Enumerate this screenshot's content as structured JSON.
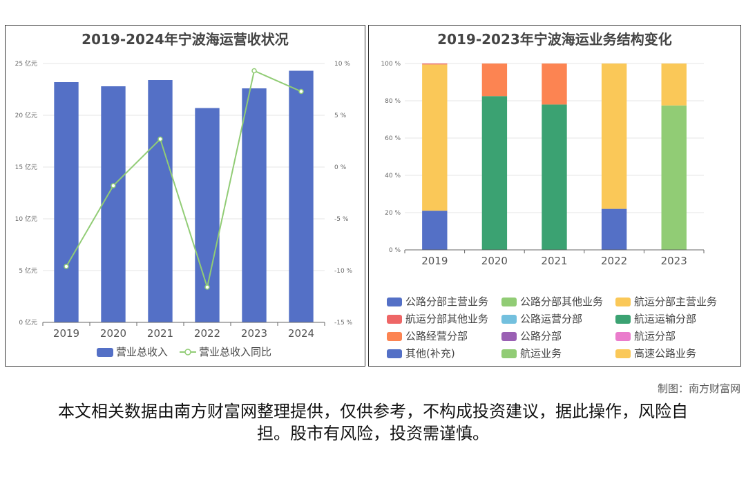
{
  "credit": "制图：南方财富网",
  "disclaimer": "本文相关数据由南方财富网整理提供，仅供参考，不构成投资建议，据此操作，风险自担。股市有风险，投资需谨慎。",
  "chart_data": [
    {
      "type": "bar",
      "title": "2019-2024年宁波海运营收状况",
      "categories": [
        "2019",
        "2020",
        "2021",
        "2022",
        "2023",
        "2024"
      ],
      "y_ticks": [
        "0 亿元",
        "5 亿元",
        "10 亿元",
        "15 亿元",
        "20 亿元",
        "25 亿元"
      ],
      "y2_ticks": [
        "-15 %",
        "-10 %",
        "-5 %",
        "0 %",
        "5 %",
        "10 %"
      ],
      "ylim": [
        0,
        25
      ],
      "y2lim": [
        -15,
        10
      ],
      "legend_position": "bottom",
      "series": [
        {
          "name": "营业总收入",
          "type": "bar",
          "axis": "left",
          "color": "#5470c6",
          "values": [
            23.2,
            22.8,
            23.4,
            20.7,
            22.6,
            24.3
          ]
        },
        {
          "name": "营业总收入同比",
          "type": "line",
          "axis": "right",
          "color": "#91cc75",
          "values": [
            -9.6,
            -1.8,
            2.7,
            -11.6,
            9.3,
            7.3
          ]
        }
      ]
    },
    {
      "type": "bar",
      "stacked": true,
      "title": "2019-2023年宁波海运业务结构变化",
      "categories": [
        "2019",
        "2020",
        "2021",
        "2022",
        "2023"
      ],
      "y_ticks": [
        "0 %",
        "20 %",
        "40 %",
        "60 %",
        "80 %",
        "100 %"
      ],
      "ylim": [
        0,
        100
      ],
      "legend_position": "bottom",
      "series": [
        {
          "name": "公路分部主营业务",
          "color": "#5470c6",
          "values": [
            21,
            0,
            0,
            0,
            0
          ]
        },
        {
          "name": "公路分部其他业务",
          "color": "#91cc75",
          "values": [
            0,
            0,
            0,
            0,
            0
          ]
        },
        {
          "name": "航运分部主营业务",
          "color": "#fac858",
          "values": [
            78.5,
            0,
            0,
            0,
            0
          ]
        },
        {
          "name": "航运分部其他业务",
          "color": "#ee6666",
          "values": [
            0.5,
            0,
            0,
            0,
            0
          ]
        },
        {
          "name": "公路运营分部",
          "color": "#73c0de",
          "values": [
            0,
            0,
            0,
            0,
            0
          ]
        },
        {
          "name": "航运运输分部",
          "color": "#3ba272",
          "values": [
            0,
            82.5,
            78,
            0,
            0
          ]
        },
        {
          "name": "公路经营分部",
          "color": "#fc8452",
          "values": [
            0,
            17.5,
            22,
            0,
            0
          ]
        },
        {
          "name": "公路分部",
          "color": "#9a60b4",
          "values": [
            0,
            0,
            0,
            0,
            0
          ]
        },
        {
          "name": "航运分部",
          "color": "#ea7ccc",
          "values": [
            0,
            0,
            0,
            0,
            0
          ]
        },
        {
          "name": "其他(补充)",
          "color": "#5470c6",
          "values": [
            0,
            0,
            0,
            22,
            0
          ]
        },
        {
          "name": "航运业务",
          "color": "#91cc75",
          "values": [
            0,
            0,
            0,
            0,
            77.5
          ]
        },
        {
          "name": "高速公路业务",
          "color": "#fac858",
          "values": [
            0,
            0,
            0,
            78,
            22.5
          ]
        }
      ]
    }
  ]
}
